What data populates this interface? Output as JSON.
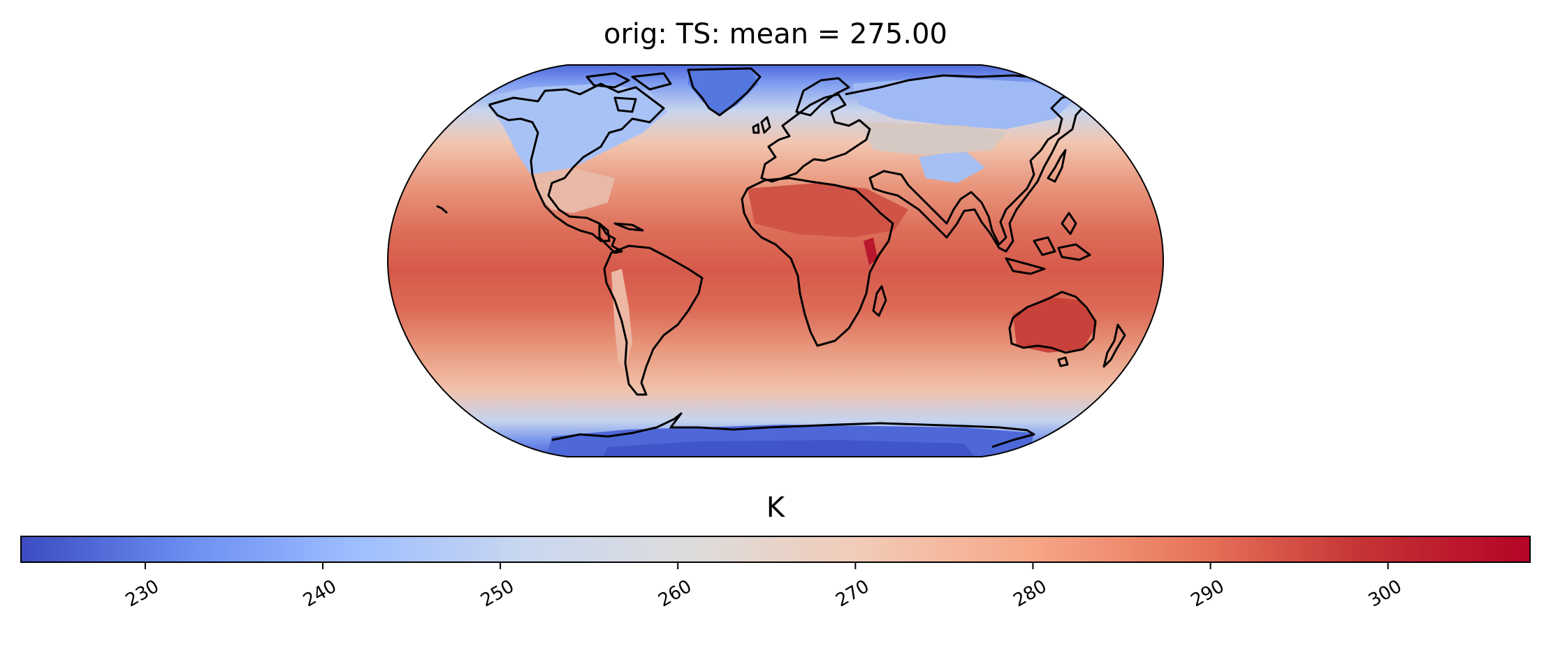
{
  "figure": {
    "title": "orig: TS: mean =  275.00",
    "projection": "robinson",
    "coastlines": "black"
  },
  "colorbar": {
    "label": "K",
    "orientation": "horizontal",
    "location": "bottom",
    "colormap": "coolwarm",
    "vmin": 223,
    "vmax": 308,
    "ticks": [
      230,
      240,
      250,
      260,
      270,
      280,
      290,
      300
    ],
    "tick_labels": [
      "230",
      "240",
      "250",
      "260",
      "270",
      "280",
      "290",
      "300"
    ],
    "colors": [
      "#3b4cc0",
      "#6b8ef2",
      "#9ebeff",
      "#c9d7f0",
      "#dddcdc",
      "#f2cbb7",
      "#f7a889",
      "#e8765c",
      "#c53334",
      "#b40426"
    ]
  },
  "map_fill": {
    "polar_cold": "#5b7fe8",
    "subpolar_cool": "#b8cff5",
    "midlatitude": "#f4b69a",
    "subtropical": "#e88a70",
    "tropical": "#d4574a",
    "hot_desert": "#c73a3a"
  }
}
